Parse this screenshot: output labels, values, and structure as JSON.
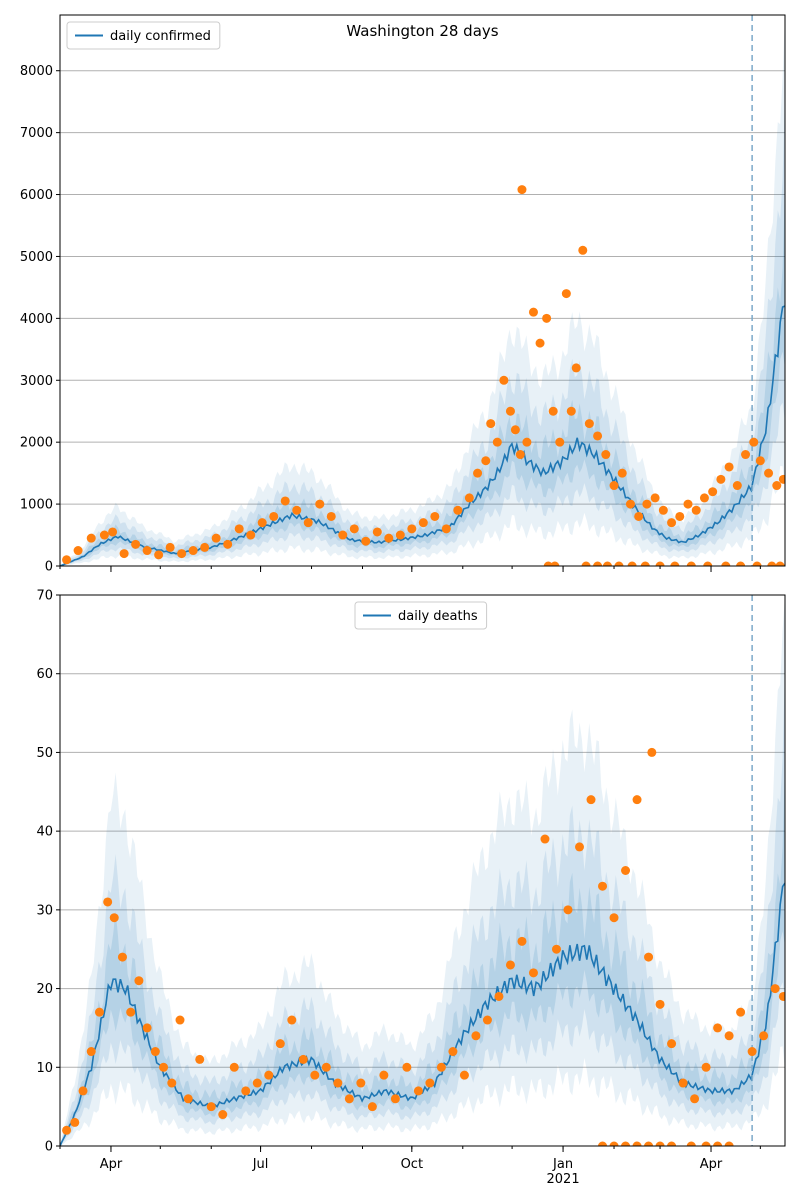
{
  "chart_data": [
    {
      "type": "line",
      "title": "Washington 28 days",
      "ylim": [
        0,
        8900
      ],
      "yticks": [
        0,
        1000,
        2000,
        3000,
        4000,
        5000,
        6000,
        7000,
        8000
      ],
      "xlim": [
        "2020-03-01",
        "2021-05-16"
      ],
      "xticks": [
        {
          "date": "2020-04-01",
          "label": "Apr"
        },
        {
          "date": "2020-07-01",
          "label": "Jul"
        },
        {
          "date": "2020-10-01",
          "label": "Oct"
        },
        {
          "date": "2021-01-01",
          "label": "Jan"
        },
        {
          "date": "2021-04-01",
          "label": "Apr"
        }
      ],
      "year_label": {
        "date": "2021-01-01",
        "label": ""
      },
      "forecast_start": "2021-04-26",
      "legend": {
        "label": "daily confirmed",
        "placement": "upper-left"
      },
      "colors": {
        "line": "#1f77b4",
        "points": "#ff7f0e",
        "band": "#1f77b4",
        "grid": "#b0b0b0"
      },
      "series": [
        {
          "name": "daily confirmed",
          "dates": [
            "2020-03-01",
            "2020-03-15",
            "2020-03-25",
            "2020-04-05",
            "2020-04-20",
            "2020-05-10",
            "2020-06-01",
            "2020-06-20",
            "2020-07-05",
            "2020-07-20",
            "2020-08-05",
            "2020-08-25",
            "2020-09-10",
            "2020-09-25",
            "2020-10-10",
            "2020-10-25",
            "2020-11-05",
            "2020-11-15",
            "2020-11-22",
            "2020-12-01",
            "2020-12-10",
            "2020-12-20",
            "2021-01-01",
            "2021-01-10",
            "2021-01-20",
            "2021-02-01",
            "2021-02-15",
            "2021-02-25",
            "2021-03-05",
            "2021-03-15",
            "2021-03-25",
            "2021-04-05",
            "2021-04-15",
            "2021-04-26",
            "2021-05-05",
            "2021-05-16"
          ],
          "values": [
            0,
            150,
            350,
            480,
            320,
            200,
            300,
            480,
            650,
            820,
            720,
            420,
            380,
            430,
            500,
            650,
            1000,
            1250,
            1500,
            1950,
            1700,
            1500,
            1700,
            2000,
            1800,
            1400,
            900,
            600,
            450,
            380,
            500,
            700,
            950,
            1300,
            2300,
            4400
          ],
          "band_inner": [
            0.8,
            1.25
          ],
          "band_mid": [
            0.6,
            1.6
          ],
          "band_outer": [
            0.35,
            2.0
          ]
        }
      ],
      "observed": {
        "dates": [
          "2020-03-05",
          "2020-03-12",
          "2020-03-20",
          "2020-03-28",
          "2020-04-02",
          "2020-04-09",
          "2020-04-16",
          "2020-04-23",
          "2020-04-30",
          "2020-05-07",
          "2020-05-14",
          "2020-05-21",
          "2020-05-28",
          "2020-06-04",
          "2020-06-11",
          "2020-06-18",
          "2020-06-25",
          "2020-07-02",
          "2020-07-09",
          "2020-07-16",
          "2020-07-23",
          "2020-07-30",
          "2020-08-06",
          "2020-08-13",
          "2020-08-20",
          "2020-08-27",
          "2020-09-03",
          "2020-09-10",
          "2020-09-17",
          "2020-09-24",
          "2020-10-01",
          "2020-10-08",
          "2020-10-15",
          "2020-10-22",
          "2020-10-29",
          "2020-11-05",
          "2020-11-10",
          "2020-11-15",
          "2020-11-18",
          "2020-11-22",
          "2020-11-26",
          "2020-11-30",
          "2020-12-03",
          "2020-12-06",
          "2020-12-10",
          "2020-12-14",
          "2020-12-18",
          "2020-12-22",
          "2020-12-26",
          "2020-12-30",
          "2021-01-03",
          "2021-01-06",
          "2021-01-09",
          "2021-01-13",
          "2021-01-17",
          "2021-01-22",
          "2021-01-27",
          "2021-02-01",
          "2021-02-06",
          "2021-02-11",
          "2021-02-16",
          "2021-02-21",
          "2021-02-26",
          "2021-03-03",
          "2021-03-08",
          "2021-03-13",
          "2021-03-18",
          "2021-03-23",
          "2021-03-28",
          "2021-04-02",
          "2021-04-07",
          "2021-04-12",
          "2021-04-17",
          "2021-04-22",
          "2021-04-27",
          "2021-05-01",
          "2021-05-06",
          "2021-05-11",
          "2021-05-15"
        ],
        "values": [
          100,
          250,
          450,
          500,
          550,
          200,
          350,
          250,
          180,
          300,
          200,
          250,
          300,
          450,
          350,
          600,
          500,
          700,
          800,
          1050,
          900,
          700,
          1000,
          800,
          500,
          600,
          400,
          550,
          450,
          500,
          600,
          700,
          800,
          600,
          900,
          1100,
          1500,
          1700,
          2300,
          2000,
          3000,
          2500,
          2200,
          1800,
          2000,
          4100,
          3600,
          4000,
          2500,
          2000,
          4400,
          2500,
          3200,
          5100,
          2300,
          2100,
          1800,
          1300,
          1500,
          1000,
          800,
          1000,
          1100,
          900,
          700,
          800,
          1000,
          900,
          1100,
          1200,
          1400,
          1600,
          1300,
          1800,
          2000,
          1700,
          1500,
          1300,
          1400
        ],
        "zeros": [
          "2020-12-23",
          "2020-12-27",
          "2021-01-15",
          "2021-01-22",
          "2021-01-28",
          "2021-02-04",
          "2021-02-12",
          "2021-02-20",
          "2021-03-01",
          "2021-03-10",
          "2021-03-20",
          "2021-03-30",
          "2021-04-10",
          "2021-04-19",
          "2021-04-29",
          "2021-05-08",
          "2021-05-13"
        ],
        "outliers": [
          {
            "date": "2020-12-07",
            "value": 6080
          }
        ]
      }
    },
    {
      "type": "line",
      "title": "",
      "ylim": [
        0,
        70
      ],
      "yticks": [
        0,
        10,
        20,
        30,
        40,
        50,
        60,
        70
      ],
      "xlim": [
        "2020-03-01",
        "2021-05-16"
      ],
      "xticks": [
        {
          "date": "2020-04-01",
          "label": "Apr"
        },
        {
          "date": "2020-07-01",
          "label": "Jul"
        },
        {
          "date": "2020-10-01",
          "label": "Oct"
        },
        {
          "date": "2021-01-01",
          "label": "Jan"
        },
        {
          "date": "2021-04-01",
          "label": "Apr"
        }
      ],
      "year_label": {
        "date": "2021-01-01",
        "label": "2021"
      },
      "forecast_start": "2021-04-26",
      "legend": {
        "label": "daily deaths",
        "placement": "upper-center"
      },
      "colors": {
        "line": "#1f77b4",
        "points": "#ff7f0e",
        "band": "#1f77b4",
        "grid": "#b0b0b0"
      },
      "series": [
        {
          "name": "daily deaths",
          "dates": [
            "2020-03-01",
            "2020-03-10",
            "2020-03-20",
            "2020-04-01",
            "2020-04-10",
            "2020-04-20",
            "2020-05-01",
            "2020-05-15",
            "2020-06-01",
            "2020-06-15",
            "2020-07-01",
            "2020-07-15",
            "2020-08-01",
            "2020-08-15",
            "2020-09-01",
            "2020-09-15",
            "2020-10-01",
            "2020-10-15",
            "2020-11-01",
            "2020-11-15",
            "2020-12-01",
            "2020-12-15",
            "2021-01-01",
            "2021-01-15",
            "2021-02-01",
            "2021-02-15",
            "2021-03-01",
            "2021-03-15",
            "2021-04-01",
            "2021-04-15",
            "2021-04-26",
            "2021-05-05",
            "2021-05-16"
          ],
          "values": [
            0,
            4,
            10,
            21,
            20,
            15,
            10,
            6,
            5,
            6,
            7,
            10,
            11,
            8,
            6,
            7,
            6,
            8,
            14,
            18,
            21,
            20,
            24,
            25,
            20,
            16,
            11,
            8,
            7,
            7,
            9,
            16,
            35
          ],
          "band_inner": [
            0.8,
            1.25
          ],
          "band_mid": [
            0.6,
            1.6
          ],
          "band_outer": [
            0.35,
            2.1
          ]
        }
      ],
      "observed": {
        "dates": [
          "2020-03-05",
          "2020-03-10",
          "2020-03-15",
          "2020-03-20",
          "2020-03-25",
          "2020-03-30",
          "2020-04-03",
          "2020-04-08",
          "2020-04-13",
          "2020-04-18",
          "2020-04-23",
          "2020-04-28",
          "2020-05-03",
          "2020-05-08",
          "2020-05-13",
          "2020-05-18",
          "2020-05-25",
          "2020-06-01",
          "2020-06-08",
          "2020-06-15",
          "2020-06-22",
          "2020-06-29",
          "2020-07-06",
          "2020-07-13",
          "2020-07-20",
          "2020-07-27",
          "2020-08-03",
          "2020-08-10",
          "2020-08-17",
          "2020-08-24",
          "2020-08-31",
          "2020-09-07",
          "2020-09-14",
          "2020-09-21",
          "2020-09-28",
          "2020-10-05",
          "2020-10-12",
          "2020-10-19",
          "2020-10-26",
          "2020-11-02",
          "2020-11-09",
          "2020-11-16",
          "2020-11-23",
          "2020-11-30",
          "2020-12-07",
          "2020-12-14",
          "2020-12-21",
          "2020-12-28",
          "2021-01-04",
          "2021-01-11",
          "2021-01-18",
          "2021-01-25",
          "2021-02-01",
          "2021-02-08",
          "2021-02-15",
          "2021-02-22",
          "2021-03-01",
          "2021-03-08",
          "2021-03-15",
          "2021-03-22",
          "2021-03-29",
          "2021-04-05",
          "2021-04-12",
          "2021-04-19",
          "2021-04-26",
          "2021-05-03",
          "2021-05-10",
          "2021-05-15"
        ],
        "values": [
          2,
          3,
          7,
          12,
          17,
          31,
          29,
          24,
          17,
          21,
          15,
          12,
          10,
          8,
          16,
          6,
          11,
          5,
          4,
          10,
          7,
          8,
          9,
          13,
          16,
          11,
          9,
          10,
          8,
          6,
          8,
          5,
          9,
          6,
          10,
          7,
          8,
          10,
          12,
          9,
          14,
          16,
          19,
          23,
          26,
          22,
          39,
          25,
          30,
          38,
          44,
          33,
          29,
          35,
          44,
          24,
          18,
          13,
          8,
          6,
          10,
          15,
          14,
          17,
          12,
          14,
          20,
          19
        ],
        "zeros": [
          "2021-01-25",
          "2021-02-01",
          "2021-02-08",
          "2021-02-15",
          "2021-02-22",
          "2021-03-01",
          "2021-03-08",
          "2021-03-20",
          "2021-03-29",
          "2021-04-05",
          "2021-04-12"
        ],
        "outliers": [
          {
            "date": "2021-02-24",
            "value": 50
          }
        ]
      }
    }
  ]
}
